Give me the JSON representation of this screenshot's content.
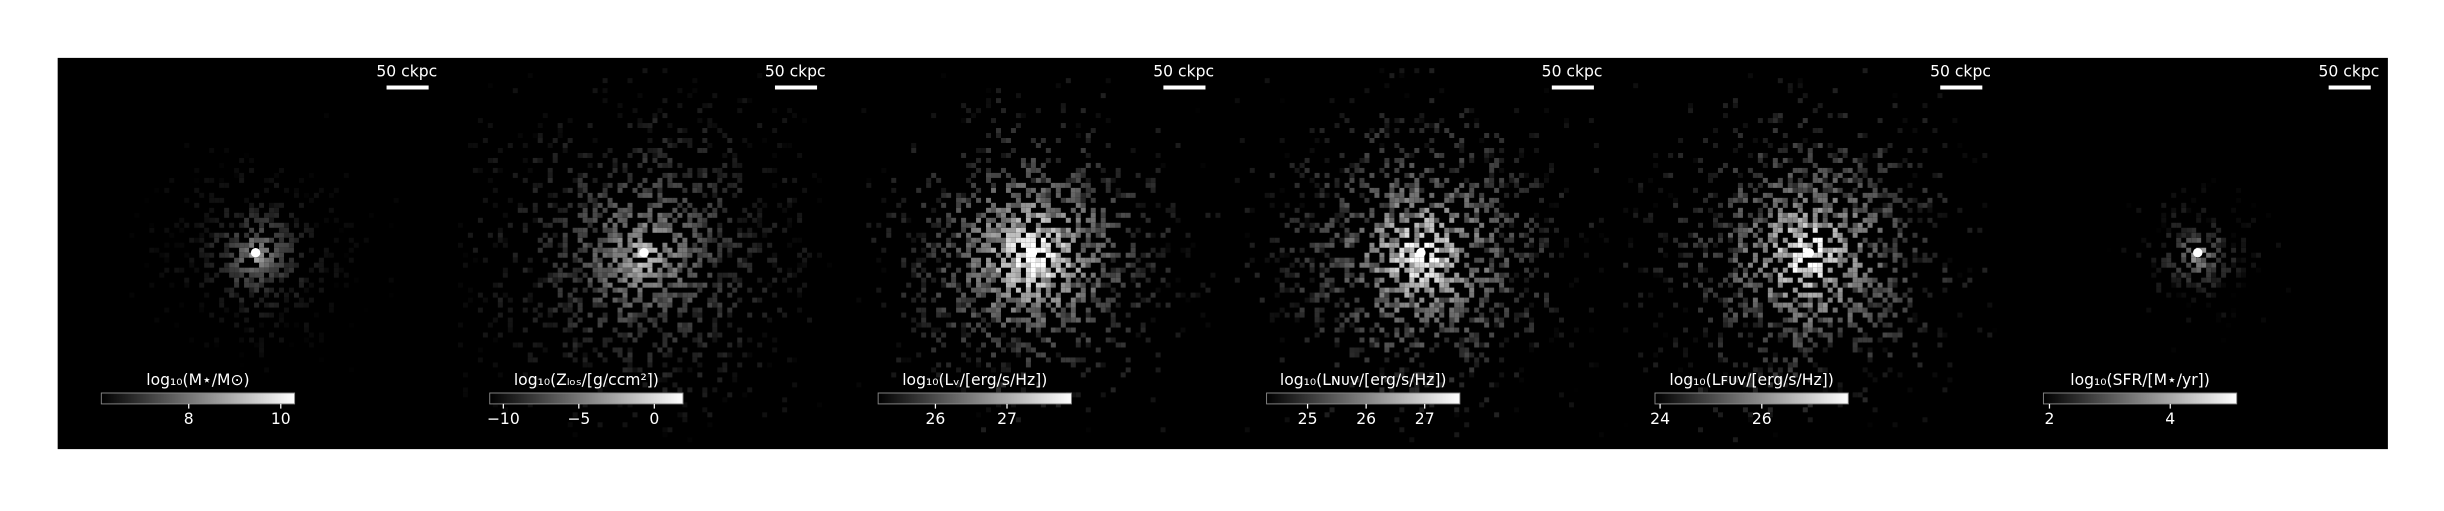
{
  "chart_data": [
    {
      "type": "image",
      "scalebar": "50 ckpc",
      "colorbar_label": "log₁₀(M⋆/M⊙)",
      "clim": [
        6.1,
        10.3
      ],
      "cticks": [
        8,
        10
      ]
    },
    {
      "type": "image",
      "scalebar": "50 ckpc",
      "colorbar_label": "log₁₀(Zₗₒₛ/[g/ccm²])",
      "clim": [
        -10.9,
        1.9
      ],
      "cticks": [
        {
          "value": -10,
          "label": "−10"
        },
        {
          "value": -5,
          "label": "−5"
        },
        0
      ]
    },
    {
      "type": "image",
      "scalebar": "50 ckpc",
      "colorbar_label": "log₁₀(Lᵥ/[erg/s/Hz])",
      "clim": [
        25.2,
        27.9
      ],
      "cticks": [
        26,
        27
      ]
    },
    {
      "type": "image",
      "scalebar": "50 ckpc",
      "colorbar_label": "log₁₀(Lɴᴜᴠ/[erg/s/Hz])",
      "clim": [
        24.3,
        27.6
      ],
      "cticks": [
        25,
        26,
        27
      ]
    },
    {
      "type": "image",
      "scalebar": "50 ckpc",
      "colorbar_label": "log₁₀(Lꜰᴜᴠ/[erg/s/Hz])",
      "clim": [
        23.9,
        27.7
      ],
      "cticks": [
        24,
        26
      ]
    },
    {
      "type": "image",
      "scalebar": "50 ckpc",
      "colorbar_label": "log₁₀(SFR/[M⋆/yr])",
      "clim": [
        1.9,
        5.1
      ],
      "cticks": [
        2,
        4
      ]
    }
  ]
}
